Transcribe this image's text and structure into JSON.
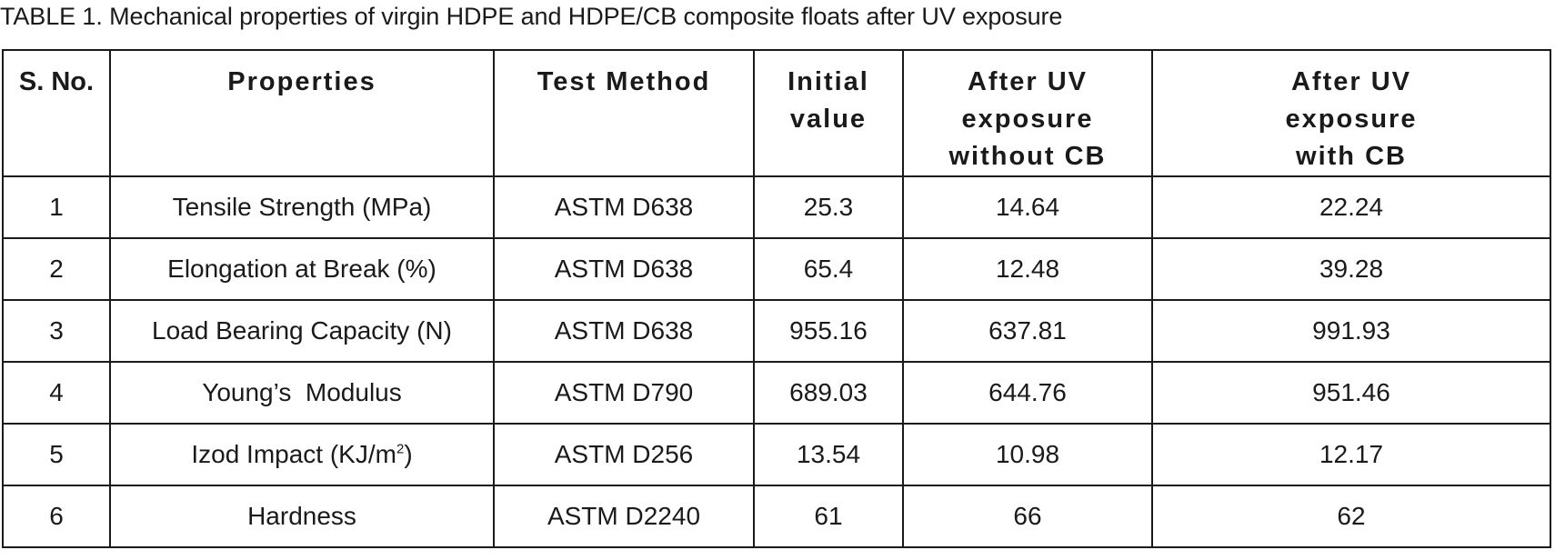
{
  "caption": "TABLE 1.  Mechanical  properties of virgin HDPE and HDPE/CB composite floats after UV exposure",
  "headers": {
    "sno": "S. No.",
    "properties": "Properties",
    "test_method": "Test Method",
    "initial_line1": "Initial",
    "initial_line2": "value",
    "uv_without_line1": "After UV",
    "uv_without_line2": "exposure",
    "uv_without_line3": "without CB",
    "uv_with_line1": "After UV",
    "uv_with_line2": "exposure",
    "uv_with_line3": "with CB"
  },
  "rows": [
    {
      "sno": "1",
      "property": "Tensile Strength (MPa)",
      "method": "ASTM D638",
      "initial": "25.3",
      "uv_without": "14.64",
      "uv_with": "22.24"
    },
    {
      "sno": "2",
      "property": "Elongation at Break (%)",
      "method": "ASTM D638",
      "initial": "65.4",
      "uv_without": "12.48",
      "uv_with": "39.28"
    },
    {
      "sno": "3",
      "property": "Load Bearing Capacity (N)",
      "method": "ASTM D638",
      "initial": "955.16",
      "uv_without": "637.81",
      "uv_with": "991.93"
    },
    {
      "sno": "4",
      "property": "Young’s  Modulus",
      "method": "ASTM D790",
      "initial": "689.03",
      "uv_without": "644.76",
      "uv_with": "951.46"
    },
    {
      "sno": "5",
      "property": "Izod Impact (KJ/m",
      "property_sup": "2",
      "property_suffix": ")",
      "method": "ASTM D256",
      "initial": "13.54",
      "uv_without": "10.98",
      "uv_with": "12.17"
    },
    {
      "sno": "6",
      "property": "Hardness",
      "method": "ASTM D2240",
      "initial": "61",
      "uv_without": "66",
      "uv_with": "62"
    }
  ]
}
